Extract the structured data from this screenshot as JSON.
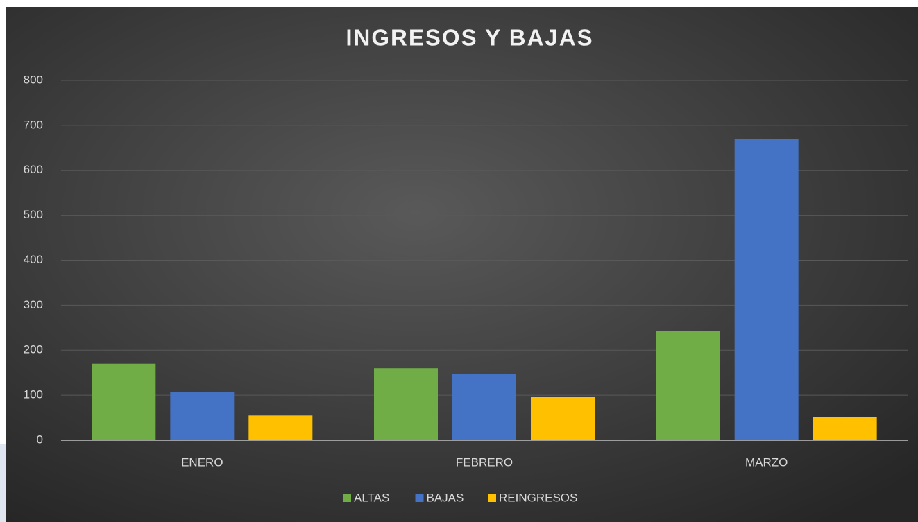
{
  "chart_data": {
    "type": "bar",
    "title": "INGRESOS Y BAJAS",
    "categories": [
      "ENERO",
      "FEBRERO",
      "MARZO"
    ],
    "series": [
      {
        "name": "ALTAS",
        "color": "#70ad47",
        "values": [
          170,
          160,
          243
        ]
      },
      {
        "name": "BAJAS",
        "color": "#4472c4",
        "values": [
          107,
          147,
          670
        ]
      },
      {
        "name": "REINGRESOS",
        "color": "#ffc000",
        "values": [
          55,
          97,
          52
        ]
      }
    ],
    "ylim": [
      0,
      800
    ],
    "yticks": [
      0,
      100,
      200,
      300,
      400,
      500,
      600,
      700,
      800
    ],
    "grid": true,
    "legend": "bottom"
  }
}
